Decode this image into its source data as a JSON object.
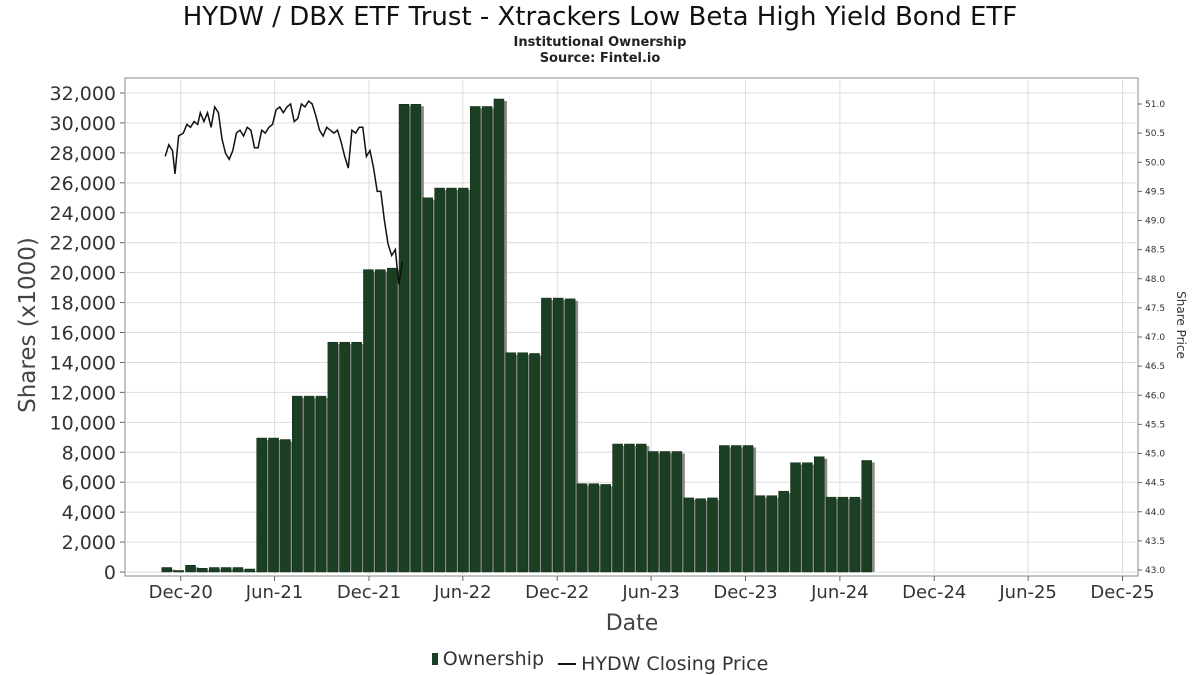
{
  "chart_data": {
    "type": "bar",
    "title": "HYDW / DBX ETF Trust - Xtrackers Low Beta High Yield Bond ETF",
    "subtitle": "Institutional Ownership",
    "source": "Source: Fintel.io",
    "xlabel": "Date",
    "ylabel": "Shares (x1000)",
    "y2label": "Share Price",
    "ylim": [
      0,
      32000
    ],
    "y2lim": [
      43.0,
      51.0
    ],
    "xlim": [
      "2020-08-15",
      "2025-12-31"
    ],
    "grid": true,
    "legend_position": "bottom-center",
    "x_ticks": [
      {
        "label": "Dec-20",
        "date": "2020-12-01"
      },
      {
        "label": "Jun-21",
        "date": "2021-06-01"
      },
      {
        "label": "Dec-21",
        "date": "2021-12-01"
      },
      {
        "label": "Jun-22",
        "date": "2022-06-01"
      },
      {
        "label": "Dec-22",
        "date": "2022-12-01"
      },
      {
        "label": "Jun-23",
        "date": "2023-06-01"
      },
      {
        "label": "Dec-23",
        "date": "2023-12-01"
      },
      {
        "label": "Jun-24",
        "date": "2024-06-01"
      },
      {
        "label": "Dec-24",
        "date": "2024-12-01"
      },
      {
        "label": "Jun-25",
        "date": "2025-06-01"
      },
      {
        "label": "Dec-25",
        "date": "2025-12-01"
      }
    ],
    "y_ticks": [
      "0",
      "2,000",
      "4,000",
      "6,000",
      "8,000",
      "10,000",
      "12,000",
      "14,000",
      "16,000",
      "18,000",
      "20,000",
      "22,000",
      "24,000",
      "26,000",
      "28,000",
      "30,000",
      "32,000"
    ],
    "y2_ticks": [
      "43.0",
      "43.5",
      "44.0",
      "44.5",
      "45.0",
      "45.5",
      "46.0",
      "46.5",
      "47.0",
      "47.5",
      "48.0",
      "48.5",
      "49.0",
      "49.5",
      "50.0",
      "50.5",
      "51.0"
    ],
    "series": [
      {
        "name": "Ownership",
        "kind": "bar",
        "color": "#1b3f22",
        "points": [
          {
            "date": "2020-11-04",
            "value": 300
          },
          {
            "date": "2020-11-27",
            "value": 100
          },
          {
            "date": "2020-12-20",
            "value": 450
          },
          {
            "date": "2021-01-12",
            "value": 250
          },
          {
            "date": "2021-02-04",
            "value": 300
          },
          {
            "date": "2021-02-27",
            "value": 300
          },
          {
            "date": "2021-03-22",
            "value": 300
          },
          {
            "date": "2021-04-14",
            "value": 200
          },
          {
            "date": "2021-05-07",
            "value": 8950
          },
          {
            "date": "2021-05-30",
            "value": 8950
          },
          {
            "date": "2021-06-22",
            "value": 8850
          },
          {
            "date": "2021-07-15",
            "value": 11750
          },
          {
            "date": "2021-08-07",
            "value": 11750
          },
          {
            "date": "2021-08-30",
            "value": 11750
          },
          {
            "date": "2021-09-22",
            "value": 15350
          },
          {
            "date": "2021-10-15",
            "value": 15350
          },
          {
            "date": "2021-11-07",
            "value": 15350
          },
          {
            "date": "2021-11-30",
            "value": 20200
          },
          {
            "date": "2021-12-23",
            "value": 20200
          },
          {
            "date": "2022-01-15",
            "value": 20300
          },
          {
            "date": "2022-02-07",
            "value": 31250
          },
          {
            "date": "2022-03-02",
            "value": 31250
          },
          {
            "date": "2022-03-25",
            "value": 25000
          },
          {
            "date": "2022-04-17",
            "value": 25650
          },
          {
            "date": "2022-05-10",
            "value": 25650
          },
          {
            "date": "2022-06-02",
            "value": 25650
          },
          {
            "date": "2022-06-25",
            "value": 31100
          },
          {
            "date": "2022-07-18",
            "value": 31100
          },
          {
            "date": "2022-08-10",
            "value": 31600
          },
          {
            "date": "2022-09-02",
            "value": 14650
          },
          {
            "date": "2022-09-25",
            "value": 14650
          },
          {
            "date": "2022-10-18",
            "value": 14600
          },
          {
            "date": "2022-11-10",
            "value": 18300
          },
          {
            "date": "2022-12-03",
            "value": 18300
          },
          {
            "date": "2022-12-26",
            "value": 18250
          },
          {
            "date": "2023-01-18",
            "value": 5900
          },
          {
            "date": "2023-02-10",
            "value": 5900
          },
          {
            "date": "2023-03-05",
            "value": 5850
          },
          {
            "date": "2023-03-28",
            "value": 8550
          },
          {
            "date": "2023-04-20",
            "value": 8550
          },
          {
            "date": "2023-05-13",
            "value": 8550
          },
          {
            "date": "2023-06-05",
            "value": 8050
          },
          {
            "date": "2023-06-28",
            "value": 8050
          },
          {
            "date": "2023-07-21",
            "value": 8050
          },
          {
            "date": "2023-08-13",
            "value": 4950
          },
          {
            "date": "2023-09-05",
            "value": 4900
          },
          {
            "date": "2023-09-28",
            "value": 4950
          },
          {
            "date": "2023-10-21",
            "value": 8450
          },
          {
            "date": "2023-11-13",
            "value": 8450
          },
          {
            "date": "2023-12-06",
            "value": 8450
          },
          {
            "date": "2023-12-29",
            "value": 5100
          },
          {
            "date": "2024-01-21",
            "value": 5100
          },
          {
            "date": "2024-02-13",
            "value": 5400
          },
          {
            "date": "2024-03-07",
            "value": 7300
          },
          {
            "date": "2024-03-30",
            "value": 7300
          },
          {
            "date": "2024-04-22",
            "value": 7700
          },
          {
            "date": "2024-05-15",
            "value": 5000
          },
          {
            "date": "2024-06-07",
            "value": 5000
          },
          {
            "date": "2024-06-30",
            "value": 5000
          },
          {
            "date": "2024-07-23",
            "value": 7450
          }
        ]
      },
      {
        "name": "HYDW Closing Price",
        "kind": "line",
        "color": "#111111",
        "points": [
          {
            "date": "2020-11-01",
            "value": 50.1
          },
          {
            "date": "2020-11-08",
            "value": 50.3
          },
          {
            "date": "2020-11-15",
            "value": 50.2
          },
          {
            "date": "2020-11-20",
            "value": 49.8
          },
          {
            "date": "2020-11-27",
            "value": 50.45
          },
          {
            "date": "2020-12-06",
            "value": 50.5
          },
          {
            "date": "2020-12-13",
            "value": 50.65
          },
          {
            "date": "2020-12-20",
            "value": 50.6
          },
          {
            "date": "2020-12-27",
            "value": 50.7
          },
          {
            "date": "2021-01-03",
            "value": 50.65
          },
          {
            "date": "2021-01-08",
            "value": 50.85
          },
          {
            "date": "2021-01-15",
            "value": 50.7
          },
          {
            "date": "2021-01-22",
            "value": 50.85
          },
          {
            "date": "2021-01-29",
            "value": 50.6
          },
          {
            "date": "2021-02-05",
            "value": 50.95
          },
          {
            "date": "2021-02-12",
            "value": 50.85
          },
          {
            "date": "2021-02-19",
            "value": 50.4
          },
          {
            "date": "2021-02-26",
            "value": 50.15
          },
          {
            "date": "2021-03-05",
            "value": 50.05
          },
          {
            "date": "2021-03-12",
            "value": 50.2
          },
          {
            "date": "2021-03-19",
            "value": 50.5
          },
          {
            "date": "2021-03-26",
            "value": 50.55
          },
          {
            "date": "2021-04-02",
            "value": 50.45
          },
          {
            "date": "2021-04-09",
            "value": 50.6
          },
          {
            "date": "2021-04-16",
            "value": 50.55
          },
          {
            "date": "2021-04-23",
            "value": 50.25
          },
          {
            "date": "2021-04-30",
            "value": 50.25
          },
          {
            "date": "2021-05-07",
            "value": 50.55
          },
          {
            "date": "2021-05-14",
            "value": 50.5
          },
          {
            "date": "2021-05-21",
            "value": 50.6
          },
          {
            "date": "2021-05-28",
            "value": 50.65
          },
          {
            "date": "2021-06-04",
            "value": 50.9
          },
          {
            "date": "2021-06-11",
            "value": 50.95
          },
          {
            "date": "2021-06-18",
            "value": 50.85
          },
          {
            "date": "2021-06-25",
            "value": 50.95
          },
          {
            "date": "2021-07-02",
            "value": 51.0
          },
          {
            "date": "2021-07-09",
            "value": 50.7
          },
          {
            "date": "2021-07-16",
            "value": 50.75
          },
          {
            "date": "2021-07-23",
            "value": 51.0
          },
          {
            "date": "2021-07-30",
            "value": 50.95
          },
          {
            "date": "2021-08-06",
            "value": 51.05
          },
          {
            "date": "2021-08-13",
            "value": 51.0
          },
          {
            "date": "2021-08-20",
            "value": 50.8
          },
          {
            "date": "2021-08-27",
            "value": 50.55
          },
          {
            "date": "2021-09-03",
            "value": 50.45
          },
          {
            "date": "2021-09-10",
            "value": 50.6
          },
          {
            "date": "2021-09-17",
            "value": 50.55
          },
          {
            "date": "2021-09-24",
            "value": 50.5
          },
          {
            "date": "2021-10-01",
            "value": 50.55
          },
          {
            "date": "2021-10-08",
            "value": 50.35
          },
          {
            "date": "2021-10-15",
            "value": 50.1
          },
          {
            "date": "2021-10-22",
            "value": 49.9
          },
          {
            "date": "2021-10-29",
            "value": 50.55
          },
          {
            "date": "2021-11-05",
            "value": 50.5
          },
          {
            "date": "2021-11-12",
            "value": 50.6
          },
          {
            "date": "2021-11-19",
            "value": 50.6
          },
          {
            "date": "2021-11-26",
            "value": 50.1
          },
          {
            "date": "2021-12-03",
            "value": 50.2
          },
          {
            "date": "2021-12-10",
            "value": 49.9
          },
          {
            "date": "2021-12-17",
            "value": 49.5
          },
          {
            "date": "2021-12-24",
            "value": 49.5
          },
          {
            "date": "2021-12-31",
            "value": 49.0
          },
          {
            "date": "2022-01-07",
            "value": 48.6
          },
          {
            "date": "2022-01-14",
            "value": 48.4
          },
          {
            "date": "2022-01-21",
            "value": 48.5
          },
          {
            "date": "2022-01-28",
            "value": 47.9
          },
          {
            "date": "2022-02-04",
            "value": 48.3
          }
        ]
      }
    ]
  }
}
